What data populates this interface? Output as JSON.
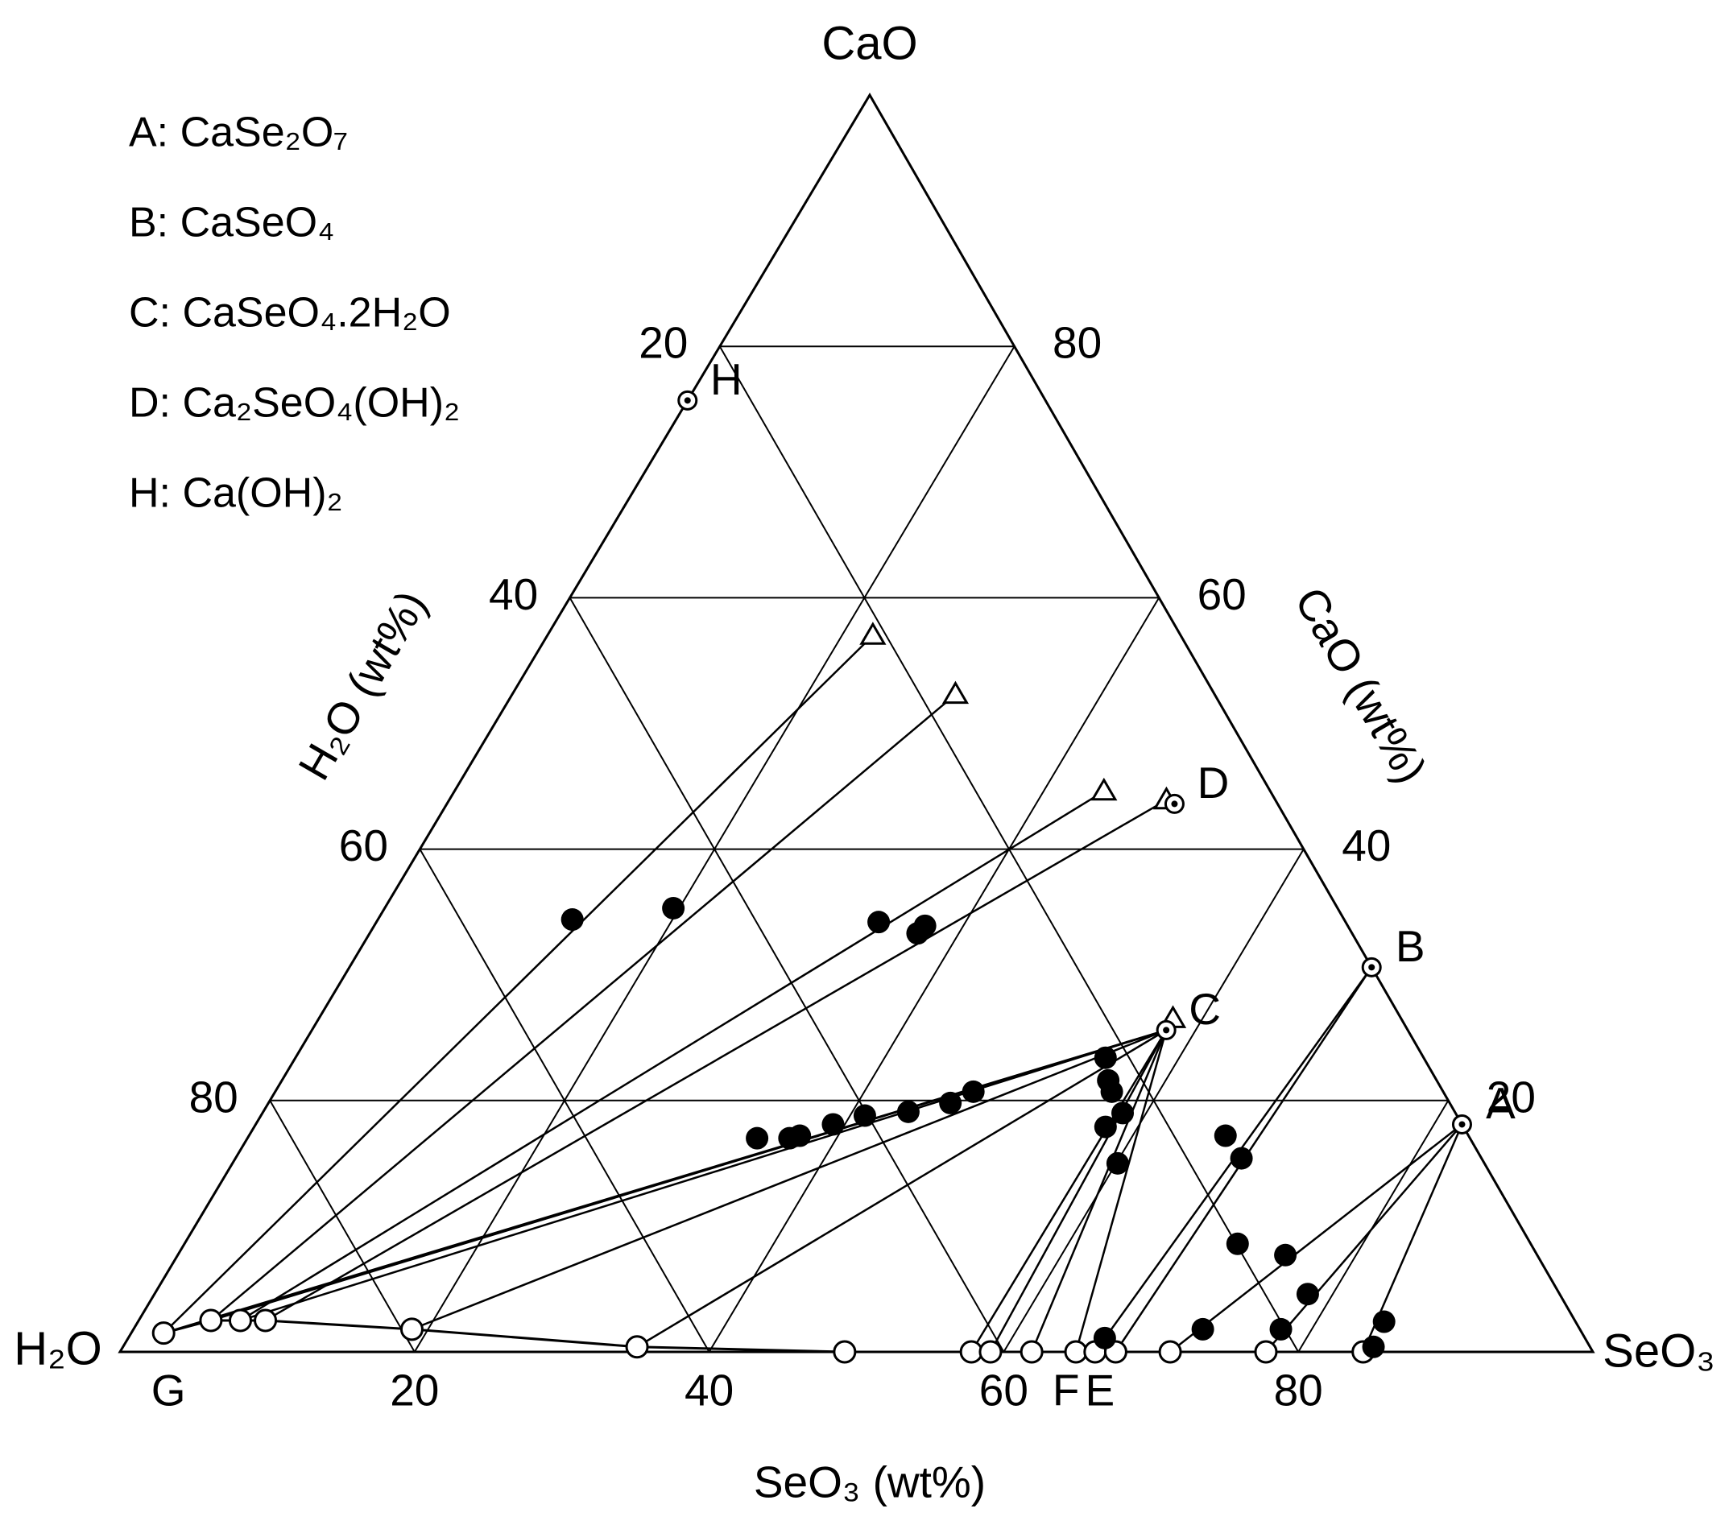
{
  "chart_data": {
    "type": "ternary",
    "vertices": {
      "top": "CaO",
      "left": "H₂O",
      "right": "SeO₃"
    },
    "axes": [
      {
        "name": "SeO3",
        "label": "SeO₃ (wt%)",
        "lim": [
          0,
          100
        ],
        "ticks": [
          20,
          40,
          60,
          80
        ]
      },
      {
        "name": "CaO",
        "label": "CaO (wt%)",
        "lim": [
          0,
          100
        ],
        "ticks": [
          20,
          40,
          60,
          80
        ]
      },
      {
        "name": "H2O",
        "label": "H₂O (wt%)",
        "lim": [
          0,
          100
        ],
        "ticks": [
          20,
          40,
          60,
          80
        ]
      }
    ],
    "grid": true,
    "compounds": [
      {
        "label": "A",
        "formula": "A: CaSe₂O₇",
        "SeO3": 81.9,
        "CaO": 18.1
      },
      {
        "label": "B",
        "formula": "B: CaSeO₄",
        "SeO3": 69.4,
        "CaO": 30.6
      },
      {
        "label": "C",
        "formula": "C: CaSeO₄.2H₂O",
        "SeO3": 58.0,
        "CaO": 25.6
      },
      {
        "label": "D",
        "formula": "D: Ca₂SeO₄(OH)₂",
        "SeO3": 49.4,
        "CaO": 43.6
      },
      {
        "label": "H",
        "formula": "H: Ca(OH)₂",
        "SeO3": 0,
        "CaO": 75.7
      }
    ],
    "point_labels": [
      {
        "label": "G",
        "SeO3": 2.2,
        "CaO": 1.5
      },
      {
        "label": "F",
        "SeO3": 63.9,
        "CaO": 0
      },
      {
        "label": "E",
        "SeO3": 66.2,
        "CaO": 0
      }
    ],
    "series": [
      {
        "marker": "open-circle",
        "connect": true,
        "SeO3": [
          2.2,
          4.9,
          6.9,
          8.6,
          18.9,
          34.9,
          49.2,
          57.8,
          59.1,
          61.9,
          64.9,
          66.2,
          67.6,
          71.3,
          77.8,
          84.4
        ],
        "CaO": [
          1.5,
          2.5,
          2.5,
          2.5,
          1.8,
          0.4,
          0,
          0,
          0,
          0,
          0,
          0,
          0,
          0,
          0,
          0
        ]
      },
      {
        "marker": "filled-circle",
        "connect": false,
        "SeO3": [
          13.2,
          19.6,
          34.1,
          37.2,
          37.4,
          34.6,
          36.8,
          37.4,
          39.2,
          41.0,
          43.8,
          46.3,
          47.4,
          55.0,
          56.1,
          56.8,
          57.8,
          58.4,
          60.1,
          66.3,
          68.3,
          71.5,
          75.2,
          78.3,
          77.9,
          72.6,
          66.3,
          84.6,
          84.9
        ],
        "CaO": [
          34.4,
          35.3,
          34.2,
          33.3,
          33.9,
          17.0,
          17.0,
          17.2,
          18.1,
          18.8,
          19.1,
          19.8,
          20.7,
          23.4,
          21.6,
          20.7,
          17.9,
          19.0,
          15.0,
          17.2,
          15.4,
          8.6,
          7.7,
          4.6,
          1.8,
          1.8,
          1.1,
          2.4,
          0.4
        ]
      },
      {
        "marker": "open-triangle",
        "connect": false,
        "SeO3": [
          22.1,
          30.1,
          44.1,
          48.7,
          58.0
        ],
        "CaO": [
          57.0,
          52.3,
          44.6,
          43.9,
          26.5
        ]
      }
    ],
    "tie_lines": [
      {
        "SeO3": [
          2.2,
          22.1
        ],
        "CaO": [
          1.5,
          57.0
        ]
      },
      {
        "SeO3": [
          4.9,
          30.1
        ],
        "CaO": [
          2.5,
          52.3
        ]
      },
      {
        "SeO3": [
          6.9,
          44.1
        ],
        "CaO": [
          2.5,
          44.6
        ]
      },
      {
        "SeO3": [
          8.6,
          48.7
        ],
        "CaO": [
          2.5,
          43.9
        ]
      },
      {
        "SeO3": [
          2.2,
          58.0
        ],
        "CaO": [
          1.5,
          25.6
        ]
      },
      {
        "SeO3": [
          4.9,
          58.0
        ],
        "CaO": [
          2.5,
          25.6
        ]
      },
      {
        "SeO3": [
          6.9,
          58.0
        ],
        "CaO": [
          2.5,
          25.6
        ]
      },
      {
        "SeO3": [
          18.9,
          58.0
        ],
        "CaO": [
          1.8,
          25.6
        ]
      },
      {
        "SeO3": [
          34.9,
          58.0
        ],
        "CaO": [
          0.4,
          25.6
        ]
      },
      {
        "SeO3": [
          57.8,
          58.0
        ],
        "CaO": [
          0,
          25.6
        ]
      },
      {
        "SeO3": [
          59.1,
          58.0
        ],
        "CaO": [
          0,
          25.6
        ]
      },
      {
        "SeO3": [
          61.9,
          58.0
        ],
        "CaO": [
          0,
          25.6
        ]
      },
      {
        "SeO3": [
          64.9,
          58.0
        ],
        "CaO": [
          0,
          25.6
        ]
      },
      {
        "SeO3": [
          66.2,
          69.4
        ],
        "CaO": [
          0,
          30.6
        ]
      },
      {
        "SeO3": [
          67.6,
          69.4
        ],
        "CaO": [
          0,
          30.6
        ]
      },
      {
        "SeO3": [
          71.3,
          81.9
        ],
        "CaO": [
          0,
          18.1
        ]
      },
      {
        "SeO3": [
          77.8,
          81.9
        ],
        "CaO": [
          0,
          18.1
        ]
      },
      {
        "SeO3": [
          84.4,
          81.9
        ],
        "CaO": [
          0,
          18.1
        ]
      }
    ]
  }
}
